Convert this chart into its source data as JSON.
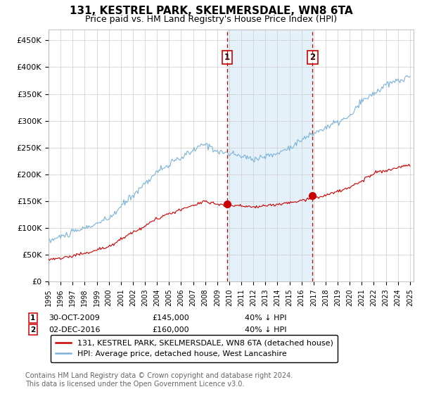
{
  "title": "131, KESTREL PARK, SKELMERSDALE, WN8 6TA",
  "subtitle": "Price paid vs. HM Land Registry's House Price Index (HPI)",
  "ylabel_ticks": [
    "£0",
    "£50K",
    "£100K",
    "£150K",
    "£200K",
    "£250K",
    "£300K",
    "£350K",
    "£400K",
    "£450K"
  ],
  "ytick_values": [
    0,
    50000,
    100000,
    150000,
    200000,
    250000,
    300000,
    350000,
    400000,
    450000
  ],
  "ylim": [
    0,
    470000
  ],
  "year_start": 1995,
  "year_end": 2025,
  "hpi_color": "#7ab3d8",
  "price_color": "#cc0000",
  "sale1_date": "30-OCT-2009",
  "sale1_price": 145000,
  "sale1_label": "40% ↓ HPI",
  "sale2_date": "02-DEC-2016",
  "sale2_price": 160000,
  "sale2_label": "40% ↓ HPI",
  "sale1_year": 2009.83,
  "sale2_year": 2016.92,
  "vline_color": "#cc0000",
  "shade_color": "#d4e8f5",
  "legend_line1": "131, KESTREL PARK, SKELMERSDALE, WN8 6TA (detached house)",
  "legend_line2": "HPI: Average price, detached house, West Lancashire",
  "footnote": "Contains HM Land Registry data © Crown copyright and database right 2024.\nThis data is licensed under the Open Government Licence v3.0.",
  "title_fontsize": 11,
  "subtitle_fontsize": 9,
  "tick_fontsize": 8,
  "legend_fontsize": 8,
  "footnote_fontsize": 7
}
